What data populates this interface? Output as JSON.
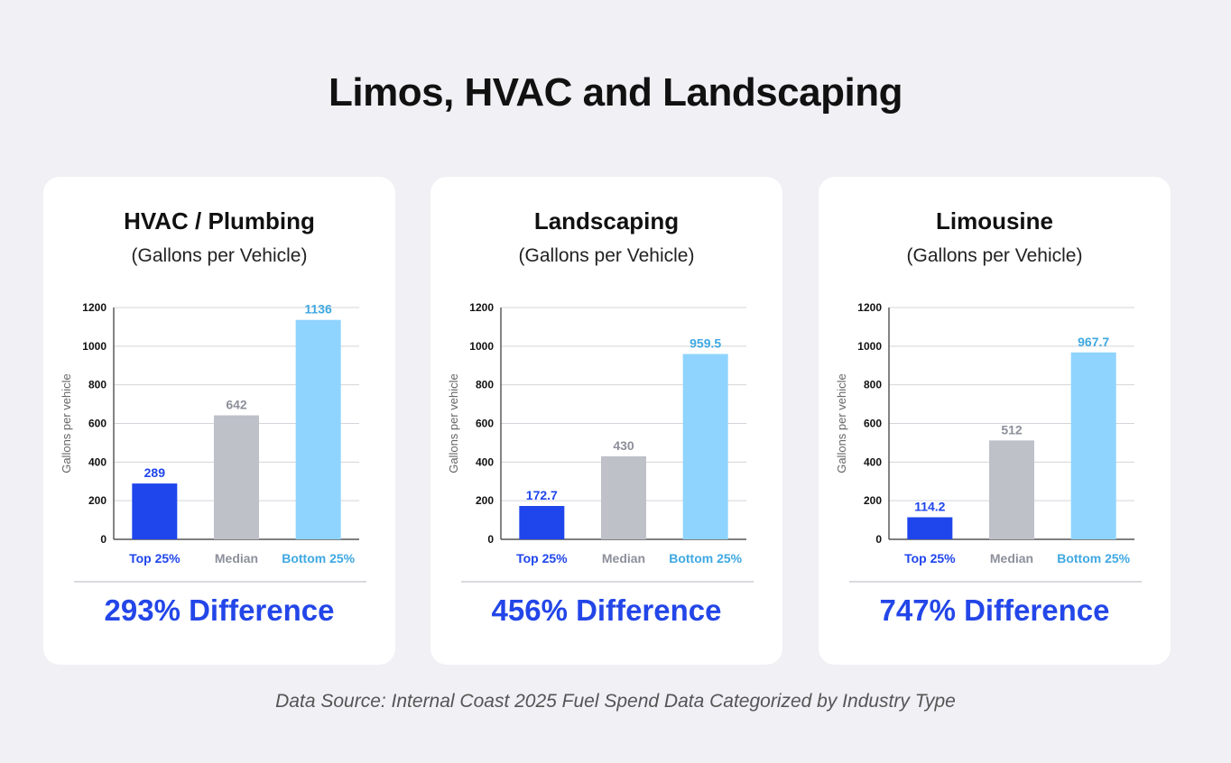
{
  "title": "Limos, HVAC and Landscaping",
  "footer": "Data Source: Internal Coast 2025 Fuel Spend Data Categorized by Industry Type",
  "colors": {
    "top": "#1f45ec",
    "median": "#bfc1c9",
    "bottom": "#8fd4ff",
    "median_label": "#8d909b",
    "bottom_label": "#3fa8e2",
    "difference": "#2346e8"
  },
  "chart_data": [
    {
      "type": "bar",
      "title": "HVAC / Plumbing",
      "subtitle": "(Gallons per Vehicle)",
      "ylabel": "Gallons per vehicle",
      "ylim": [
        0,
        1200
      ],
      "yticks": [
        0,
        200,
        400,
        600,
        800,
        1000,
        1200
      ],
      "grid": true,
      "categories": [
        "Top 25%",
        "Median",
        "Bottom 25%"
      ],
      "values": [
        289,
        642,
        1136
      ],
      "value_labels": [
        "289",
        "642",
        "1136"
      ],
      "difference": "293% Difference"
    },
    {
      "type": "bar",
      "title": "Landscaping",
      "subtitle": "(Gallons per Vehicle)",
      "ylabel": "Gallons per vehicle",
      "ylim": [
        0,
        1200
      ],
      "yticks": [
        0,
        200,
        400,
        600,
        800,
        1000,
        1200
      ],
      "grid": true,
      "categories": [
        "Top 25%",
        "Median",
        "Bottom 25%"
      ],
      "values": [
        172.7,
        430,
        959.5
      ],
      "value_labels": [
        "172.7",
        "430",
        "959.5"
      ],
      "difference": "456% Difference"
    },
    {
      "type": "bar",
      "title": "Limousine",
      "subtitle": "(Gallons per Vehicle)",
      "ylabel": "Gallons per vehicle",
      "ylim": [
        0,
        1200
      ],
      "yticks": [
        0,
        200,
        400,
        600,
        800,
        1000,
        1200
      ],
      "grid": true,
      "categories": [
        "Top 25%",
        "Median",
        "Bottom 25%"
      ],
      "values": [
        114.2,
        512,
        967.7
      ],
      "value_labels": [
        "114.2",
        "512",
        "967.7"
      ],
      "difference": "747% Difference"
    }
  ]
}
